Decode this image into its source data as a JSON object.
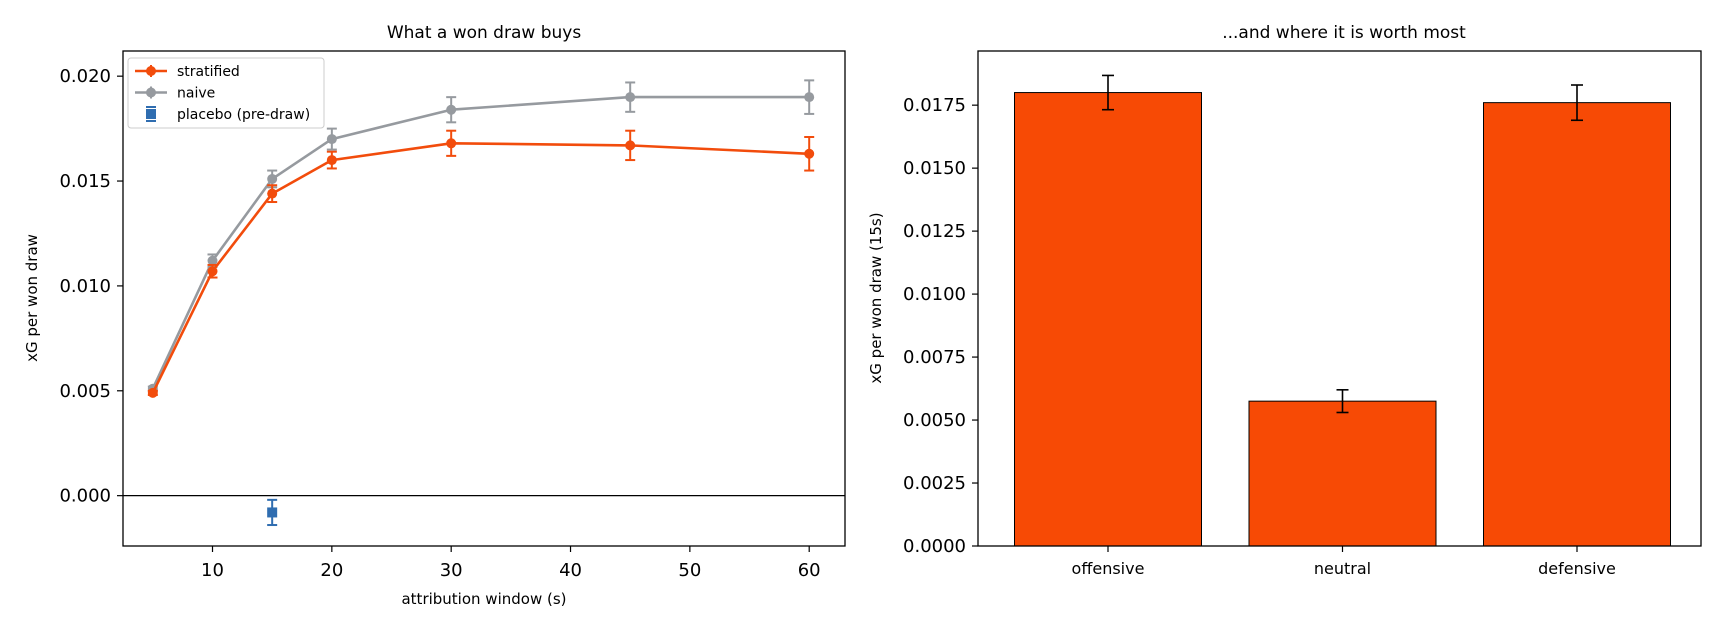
{
  "chart_data": [
    {
      "type": "line",
      "title": "What a won draw buys",
      "xlabel": "attribution window (s)",
      "ylabel": "xG per won draw",
      "xlim": [
        2.5,
        63
      ],
      "ylim": [
        -0.0024,
        0.0212
      ],
      "xticks": [
        10,
        20,
        30,
        40,
        50,
        60
      ],
      "yticks": [
        0.0,
        0.005,
        0.01,
        0.015,
        0.02
      ],
      "ytick_labels": [
        "0.000",
        "0.005",
        "0.010",
        "0.015",
        "0.020"
      ],
      "zero_line": true,
      "grid": false,
      "legend_position": "upper-left",
      "series": [
        {
          "name": "stratified",
          "color": "#f24c0c",
          "marker": "circle",
          "x": [
            5,
            10,
            15,
            20,
            30,
            45,
            60
          ],
          "y": [
            0.0049,
            0.0107,
            0.0144,
            0.016,
            0.0168,
            0.0167,
            0.0163
          ],
          "err": [
            0.0001,
            0.0003,
            0.0004,
            0.0004,
            0.0006,
            0.0007,
            0.0008
          ]
        },
        {
          "name": "naive",
          "color": "#969a9f",
          "marker": "circle",
          "x": [
            5,
            10,
            15,
            20,
            30,
            45,
            60
          ],
          "y": [
            0.0051,
            0.0112,
            0.0151,
            0.017,
            0.0184,
            0.019,
            0.019
          ],
          "err": [
            0.0001,
            0.0003,
            0.0004,
            0.0005,
            0.0006,
            0.0007,
            0.0008
          ]
        },
        {
          "name": "placebo (pre-draw)",
          "color": "#2f6db0",
          "marker": "square",
          "x": [
            15
          ],
          "y": [
            -0.0008
          ],
          "err": [
            0.0006
          ]
        }
      ]
    },
    {
      "type": "bar",
      "title": "...and where it is worth most",
      "xlabel": "",
      "ylabel": "xG per won draw (15s)",
      "categories": [
        "offensive",
        "neutral",
        "defensive"
      ],
      "values": [
        0.018,
        0.00575,
        0.0176
      ],
      "err": [
        0.00068,
        0.00045,
        0.0007
      ],
      "color": "#f74a05",
      "ylim": [
        0,
        0.01965
      ],
      "yticks": [
        0.0,
        0.0025,
        0.005,
        0.0075,
        0.01,
        0.0125,
        0.015,
        0.0175
      ],
      "ytick_labels": [
        "0.0000",
        "0.0025",
        "0.0050",
        "0.0075",
        "0.0100",
        "0.0125",
        "0.0150",
        "0.0175"
      ],
      "grid": false
    }
  ]
}
